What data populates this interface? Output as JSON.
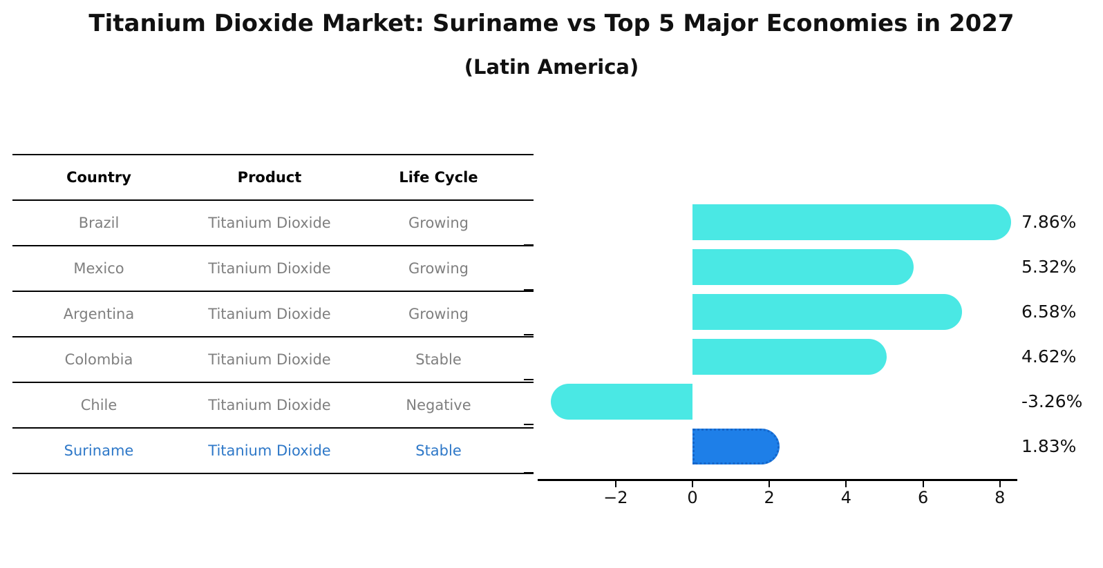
{
  "title": "Titanium Dioxide Market: Suriname vs Top 5 Major Economies in 2027",
  "subtitle": "(Latin America)",
  "table": {
    "headers": [
      "Country",
      "Product",
      "Life Cycle"
    ],
    "rows": [
      {
        "country": "Brazil",
        "product": "Titanium Dioxide",
        "life_cycle": "Growing",
        "highlight": false
      },
      {
        "country": "Mexico",
        "product": "Titanium Dioxide",
        "life_cycle": "Growing",
        "highlight": false
      },
      {
        "country": "Argentina",
        "product": "Titanium Dioxide",
        "life_cycle": "Growing",
        "highlight": false
      },
      {
        "country": "Colombia",
        "product": "Titanium Dioxide",
        "life_cycle": "Stable",
        "highlight": false
      },
      {
        "country": "Chile",
        "product": "Titanium Dioxide",
        "life_cycle": "Negative",
        "highlight": false
      },
      {
        "country": "Suriname",
        "product": "Titanium Dioxide",
        "life_cycle": "Stable",
        "highlight": true
      }
    ]
  },
  "chart_data": {
    "type": "bar",
    "orientation": "horizontal",
    "title": "Titanium Dioxide Market: Suriname vs Top 5 Major Economies in 2027 (Latin America)",
    "categories": [
      "Brazil",
      "Mexico",
      "Argentina",
      "Colombia",
      "Chile",
      "Suriname"
    ],
    "values": [
      7.86,
      5.32,
      6.58,
      4.62,
      -3.26,
      1.83
    ],
    "value_labels": [
      "7.86%",
      "5.32%",
      "6.58%",
      "4.62%",
      "-3.26%",
      "1.83%"
    ],
    "unit": "%",
    "x_ticks": [
      -2,
      0,
      2,
      4,
      6,
      8
    ],
    "x_tick_labels": [
      "−2",
      "0",
      "2",
      "4",
      "6",
      "8"
    ],
    "xlim": [
      -4.0,
      8.45
    ],
    "grid": false,
    "legend": "none",
    "colors": {
      "bar": "#4AE8E4",
      "highlight_bar": "#1E7FE8",
      "highlight_bar_edge": "#1565c8",
      "highlight_text": "#2E78C8",
      "row_text": "#7f7f7f",
      "axis": "#000000"
    },
    "highlight_index": 5
  }
}
